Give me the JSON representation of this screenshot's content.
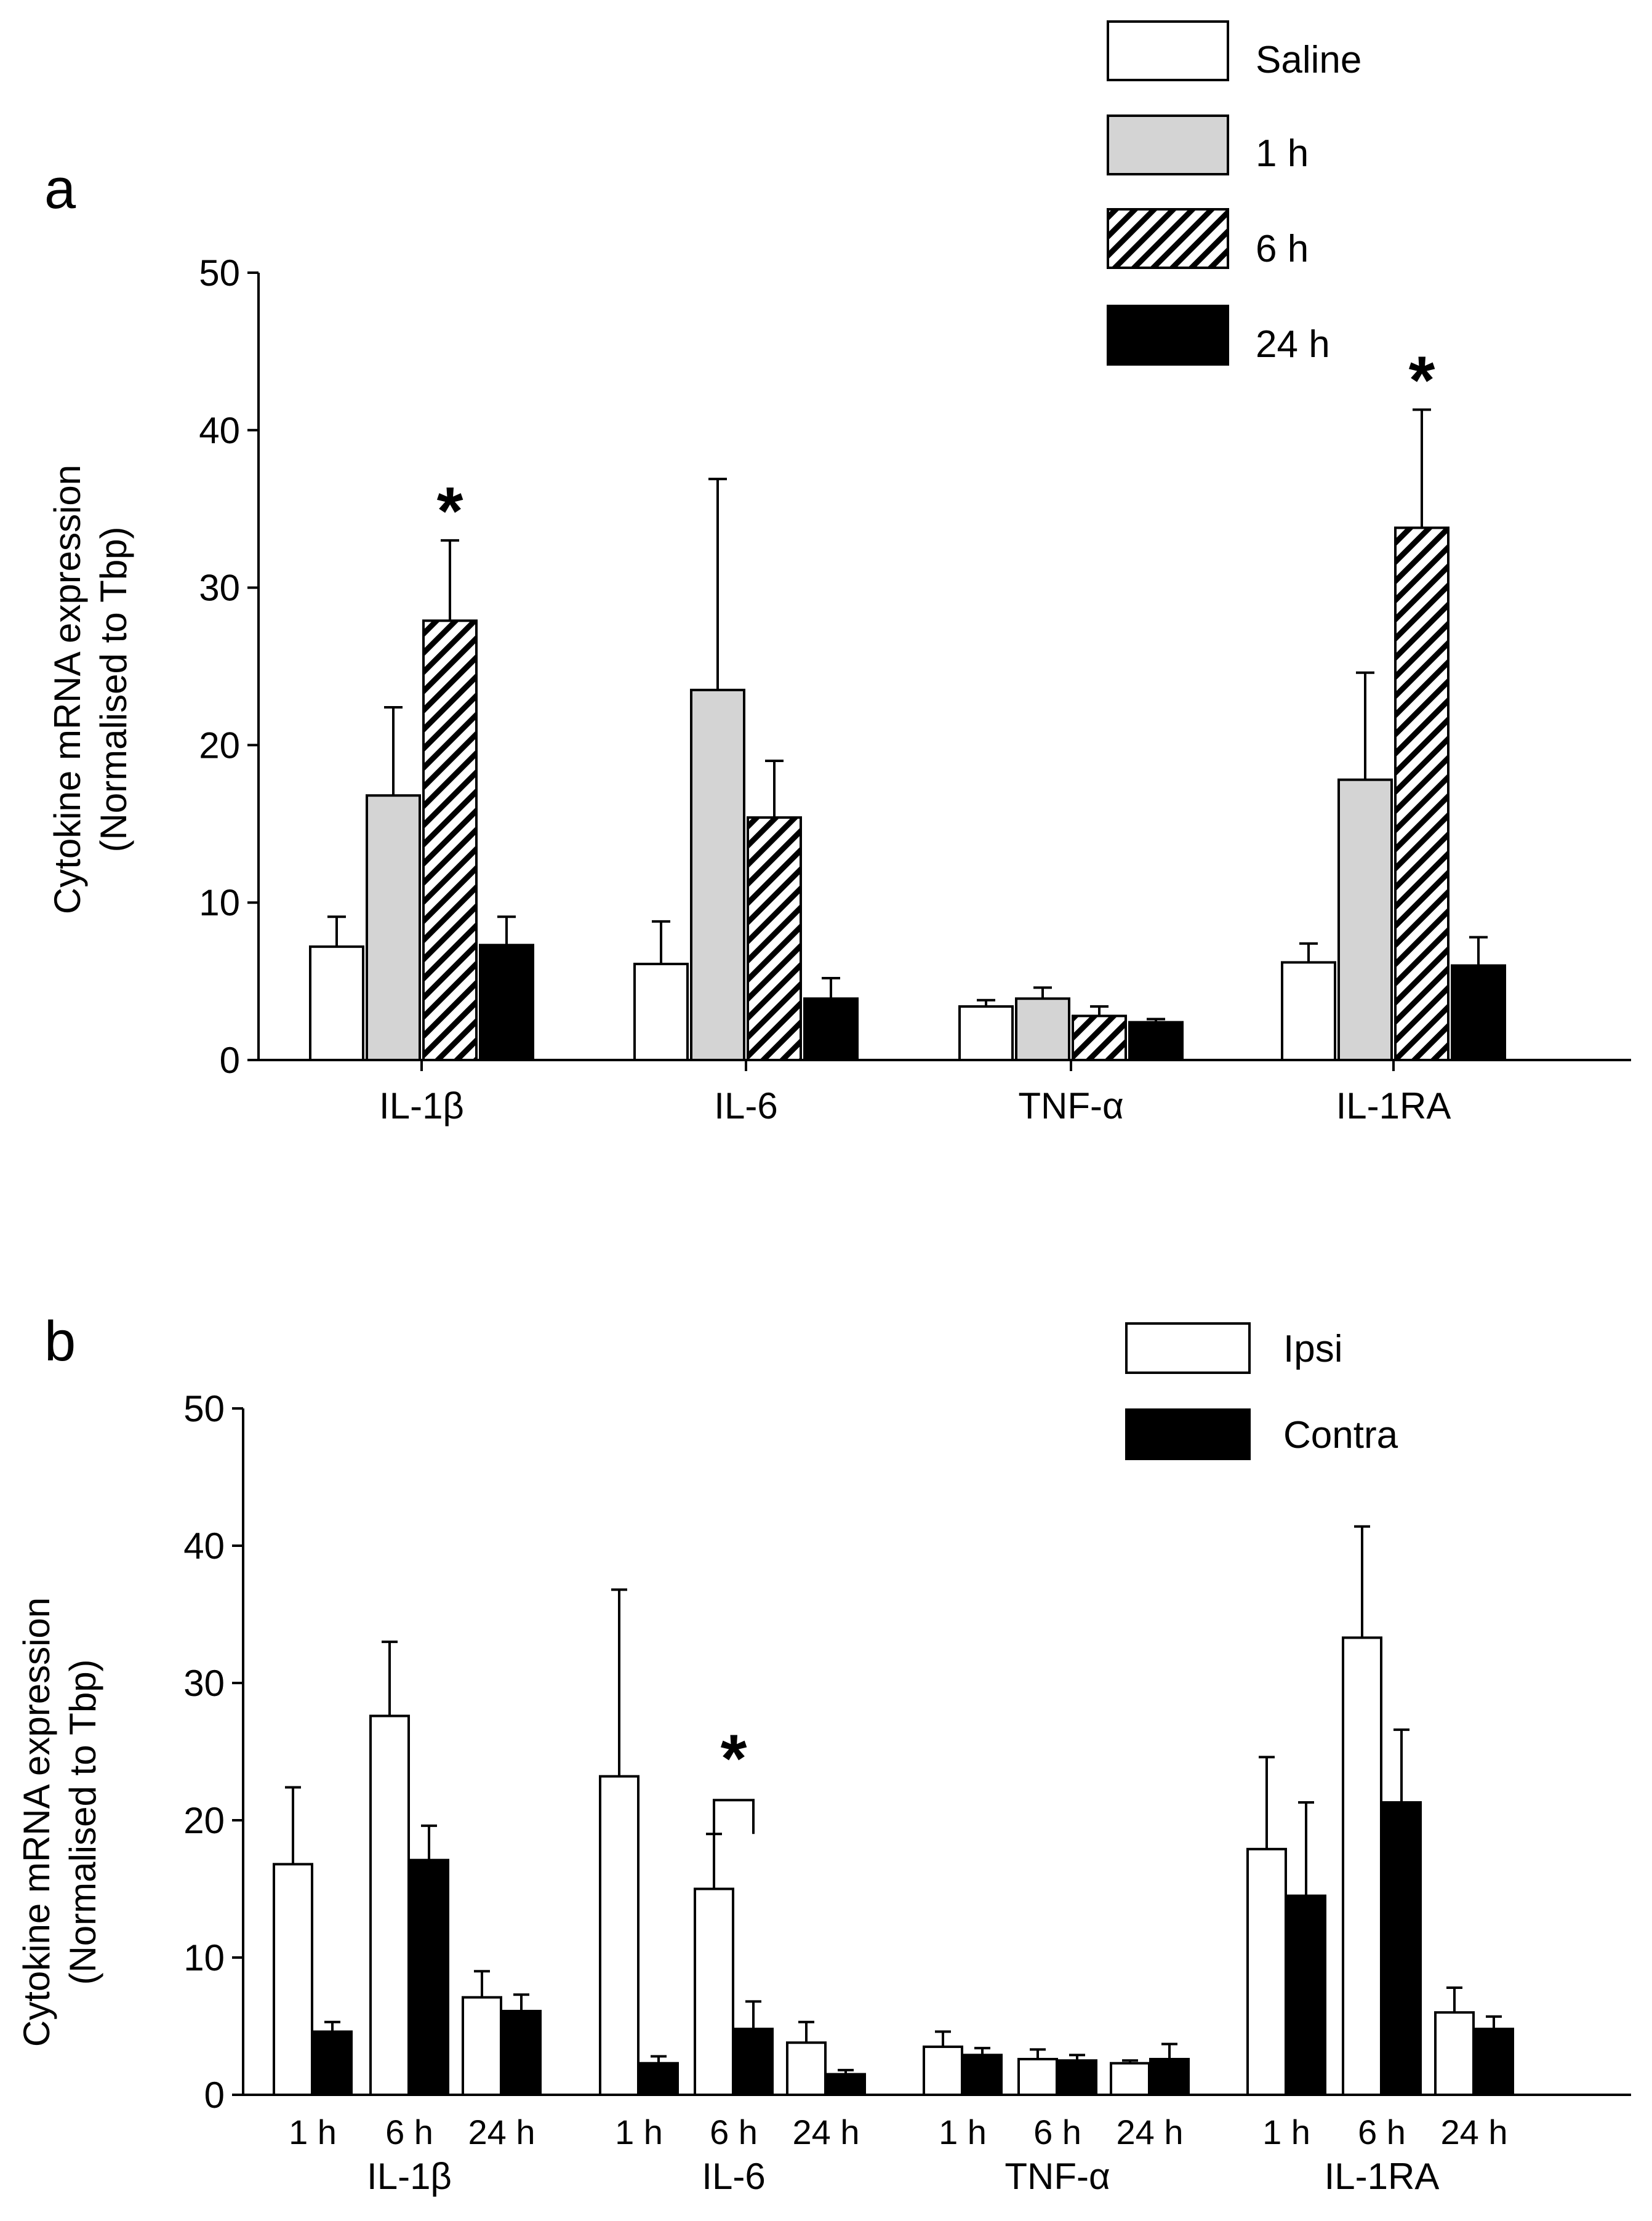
{
  "chart_data": [
    {
      "panel": "a",
      "type": "bar",
      "ylabel_lines": [
        "Cytokine mRNA expression",
        "(Normalised to Tbp)"
      ],
      "ylim": [
        0,
        50
      ],
      "yticks": [
        "0",
        "10",
        "20",
        "30",
        "40",
        "50"
      ],
      "categories": [
        "IL-1β",
        "IL-6",
        "TNF-α",
        "IL-1RA"
      ],
      "series": [
        {
          "name": "Saline",
          "fill": "white",
          "values": [
            7.2,
            6.1,
            3.4,
            6.2
          ],
          "errors": [
            1.9,
            2.7,
            0.4,
            1.2
          ]
        },
        {
          "name": "1 h",
          "fill": "gray",
          "values": [
            16.8,
            23.5,
            3.9,
            17.8
          ],
          "errors": [
            5.6,
            13.4,
            0.7,
            6.8
          ]
        },
        {
          "name": "6 h",
          "fill": "hatch",
          "values": [
            27.9,
            15.4,
            2.8,
            33.8
          ],
          "errors": [
            5.1,
            3.6,
            0.6,
            7.5
          ]
        },
        {
          "name": "24 h",
          "fill": "black",
          "values": [
            7.3,
            3.9,
            2.4,
            6.0
          ],
          "errors": [
            1.8,
            1.3,
            0.2,
            1.8
          ]
        }
      ],
      "annotations": [
        {
          "text": "*",
          "category_index": 0,
          "series_index": 2
        },
        {
          "text": "*",
          "category_index": 3,
          "series_index": 2
        }
      ]
    },
    {
      "panel": "b",
      "type": "bar",
      "ylabel_lines": [
        "Cytokine mRNA expression",
        "(Normalised to Tbp)"
      ],
      "ylim": [
        0,
        50
      ],
      "yticks": [
        "0",
        "10",
        "20",
        "30",
        "40",
        "50"
      ],
      "categories": [
        "IL-1β",
        "IL-6",
        "TNF-α",
        "IL-1RA"
      ],
      "subcategories": [
        "1 h",
        "6 h",
        "24 h"
      ],
      "series": [
        {
          "name": "Ipsi",
          "fill": "white",
          "values": [
            [
              16.8,
              27.6,
              7.1
            ],
            [
              23.2,
              15.0,
              3.8
            ],
            [
              3.5,
              2.6,
              2.3
            ],
            [
              17.9,
              33.3,
              6.0
            ]
          ],
          "errors": [
            [
              5.6,
              5.4,
              1.9
            ],
            [
              13.6,
              4.0,
              1.5
            ],
            [
              1.1,
              0.7,
              0.2
            ],
            [
              6.7,
              8.1,
              1.8
            ]
          ]
        },
        {
          "name": "Contra",
          "fill": "black",
          "values": [
            [
              4.6,
              17.1,
              6.1
            ],
            [
              2.3,
              4.8,
              1.5
            ],
            [
              2.9,
              2.5,
              2.6
            ],
            [
              14.5,
              21.3,
              4.8
            ]
          ],
          "errors": [
            [
              0.7,
              2.5,
              1.2
            ],
            [
              0.5,
              2.0,
              0.3
            ],
            [
              0.5,
              0.4,
              1.1
            ],
            [
              6.8,
              5.3,
              0.9
            ]
          ]
        }
      ],
      "annotations": [
        {
          "text": "*",
          "category_index": 1,
          "subcategory_index": 1,
          "bracket": true
        }
      ]
    }
  ]
}
